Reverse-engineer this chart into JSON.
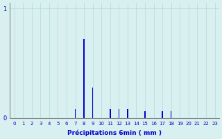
{
  "title": "",
  "xlabel": "Précipitations 6min ( mm )",
  "ylabel": "",
  "background_color": "#d8f0f0",
  "bar_color": "#0000cc",
  "grid_color": "#b8dce0",
  "axis_color": "#888888",
  "text_color": "#0000cc",
  "xlim": [
    -0.5,
    23.5
  ],
  "ylim": [
    0,
    1.05
  ],
  "yticks": [
    0,
    1
  ],
  "xtick_labels": [
    "0",
    "1",
    "2",
    "3",
    "4",
    "5",
    "6",
    "7",
    "8",
    "9",
    "10",
    "11",
    "12",
    "13",
    "14",
    "15",
    "16",
    "17",
    "18",
    "19",
    "20",
    "21",
    "22",
    "23"
  ],
  "values": [
    0,
    0,
    0,
    0,
    0,
    0,
    0,
    0.08,
    0.72,
    0.28,
    0,
    0.08,
    0.08,
    0.08,
    0,
    0.06,
    0,
    0.06,
    0.06,
    0,
    0,
    0,
    0,
    0
  ],
  "bar_width": 0.12
}
